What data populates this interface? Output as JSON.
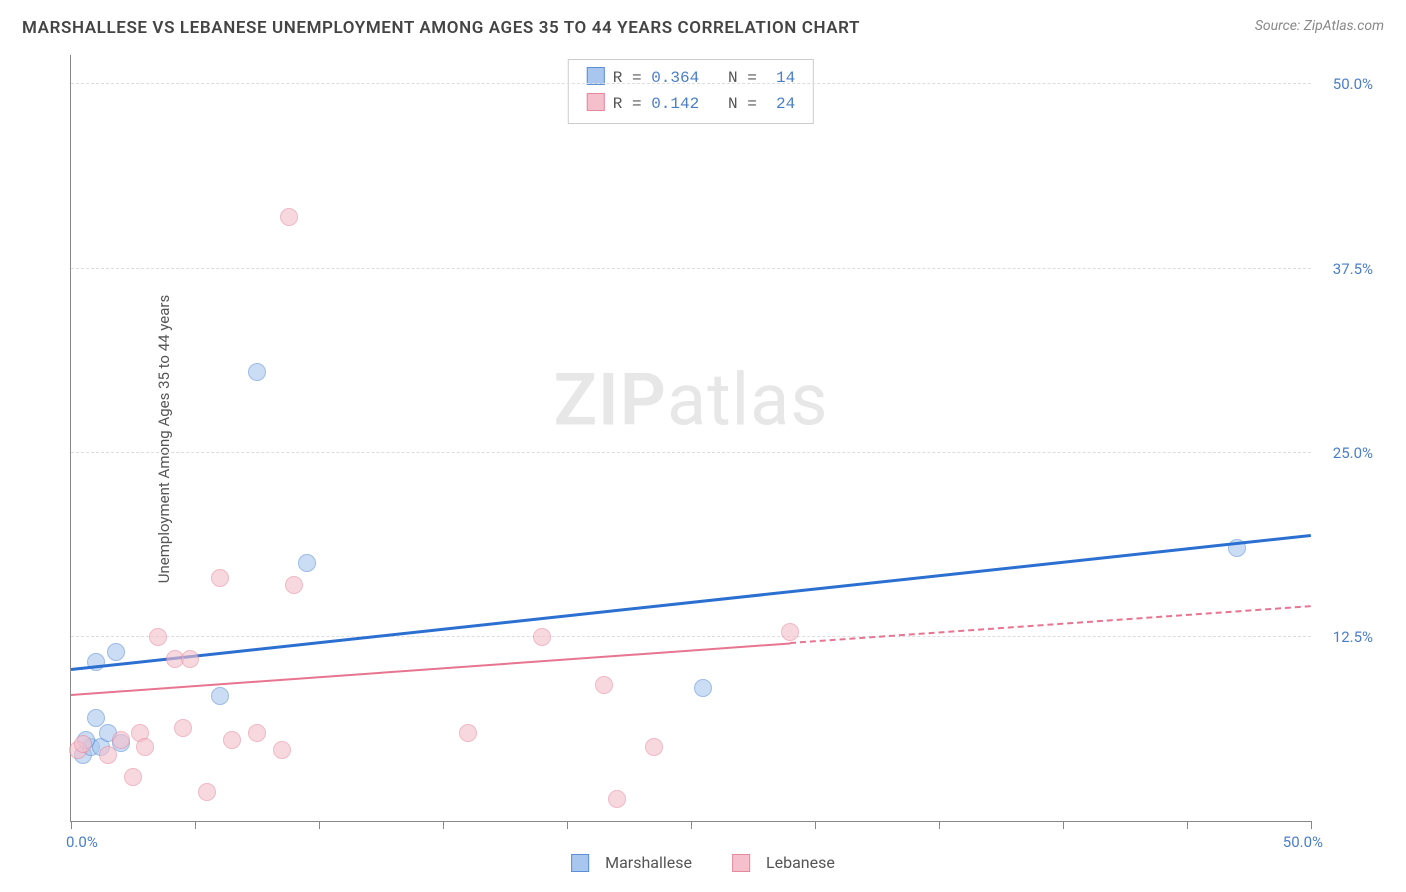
{
  "header": {
    "title": "MARSHALLESE VS LEBANESE UNEMPLOYMENT AMONG AGES 35 TO 44 YEARS CORRELATION CHART",
    "source_prefix": "Source: ",
    "source_name": "ZipAtlas.com"
  },
  "watermark": {
    "bold": "ZIP",
    "rest": "atlas"
  },
  "chart": {
    "type": "scatter",
    "ylabel": "Unemployment Among Ages 35 to 44 years",
    "xlim": [
      0,
      50
    ],
    "ylim": [
      0,
      52
    ],
    "x_ticks": [
      0,
      5,
      10,
      15,
      20,
      25,
      30,
      35,
      40,
      45,
      50
    ],
    "x_start_label": "0.0%",
    "x_end_label": "50.0%",
    "y_ticks": [
      {
        "value": 12.5,
        "label": "12.5%"
      },
      {
        "value": 25.0,
        "label": "25.0%"
      },
      {
        "value": 37.5,
        "label": "37.5%"
      },
      {
        "value": 50.0,
        "label": "50.0%"
      }
    ],
    "grid_color": "#dddddd",
    "axis_color": "#888888",
    "background_color": "#ffffff",
    "point_radius": 9,
    "point_opacity": 0.6,
    "series": [
      {
        "name": "Marshallese",
        "fill": "#a9c7ee",
        "stroke": "#5b8fd6",
        "points": [
          {
            "x": 0.5,
            "y": 4.5
          },
          {
            "x": 0.8,
            "y": 5.0
          },
          {
            "x": 1.2,
            "y": 5.0
          },
          {
            "x": 1.0,
            "y": 10.8
          },
          {
            "x": 1.8,
            "y": 11.5
          },
          {
            "x": 1.0,
            "y": 7.0
          },
          {
            "x": 6.0,
            "y": 8.5
          },
          {
            "x": 7.5,
            "y": 30.5
          },
          {
            "x": 9.5,
            "y": 17.5
          },
          {
            "x": 25.5,
            "y": 9.0
          },
          {
            "x": 47.0,
            "y": 18.5
          },
          {
            "x": 1.5,
            "y": 6.0
          },
          {
            "x": 2.0,
            "y": 5.3
          },
          {
            "x": 0.6,
            "y": 5.5
          }
        ],
        "trend": {
          "x1": 0,
          "y1": 10.2,
          "x2": 50,
          "y2": 19.3,
          "color": "#2b6fd1",
          "width": 2.5,
          "dash_from": 50
        },
        "stats": {
          "r": "0.364",
          "n": "14"
        }
      },
      {
        "name": "Lebanese",
        "fill": "#f5bfcb",
        "stroke": "#e6899f",
        "points": [
          {
            "x": 0.3,
            "y": 4.8
          },
          {
            "x": 0.5,
            "y": 5.2
          },
          {
            "x": 1.5,
            "y": 4.5
          },
          {
            "x": 2.0,
            "y": 5.5
          },
          {
            "x": 2.5,
            "y": 3.0
          },
          {
            "x": 2.8,
            "y": 6.0
          },
          {
            "x": 3.5,
            "y": 12.5
          },
          {
            "x": 3.0,
            "y": 5.0
          },
          {
            "x": 4.2,
            "y": 11.0
          },
          {
            "x": 4.8,
            "y": 11.0
          },
          {
            "x": 4.5,
            "y": 6.3
          },
          {
            "x": 5.5,
            "y": 2.0
          },
          {
            "x": 6.0,
            "y": 16.5
          },
          {
            "x": 6.5,
            "y": 5.5
          },
          {
            "x": 7.5,
            "y": 6.0
          },
          {
            "x": 8.5,
            "y": 4.8
          },
          {
            "x": 8.8,
            "y": 41.0
          },
          {
            "x": 9.0,
            "y": 16.0
          },
          {
            "x": 16.0,
            "y": 6.0
          },
          {
            "x": 19.0,
            "y": 12.5
          },
          {
            "x": 21.5,
            "y": 9.2
          },
          {
            "x": 22.0,
            "y": 1.5
          },
          {
            "x": 23.5,
            "y": 5.0
          },
          {
            "x": 29.0,
            "y": 12.8
          }
        ],
        "trend": {
          "x1": 0,
          "y1": 8.5,
          "x2": 29,
          "y2": 12.0,
          "color": "#e77490",
          "width": 2,
          "dash_from": 29,
          "dash_to_x": 50,
          "dash_to_y": 14.5
        },
        "stats": {
          "r": "0.142",
          "n": "24"
        }
      }
    ],
    "stats_labels": {
      "r": "R =",
      "n": "N ="
    },
    "legend_bottom": [
      {
        "label": "Marshallese",
        "series": 0
      },
      {
        "label": "Lebanese",
        "series": 1
      }
    ]
  }
}
